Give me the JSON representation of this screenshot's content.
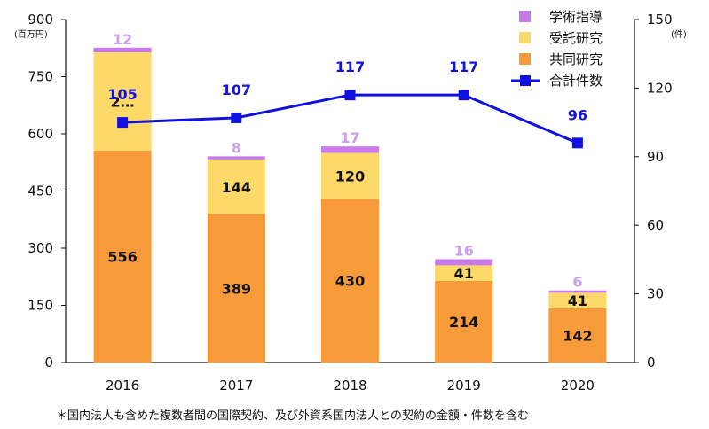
{
  "chart_data": {
    "type": "bar",
    "stacked": true,
    "categories": [
      "2016",
      "2017",
      "2018",
      "2019",
      "2020"
    ],
    "series": [
      {
        "name": "共同研究",
        "color": "#f79a3a",
        "values": [
          556,
          389,
          430,
          214,
          142
        ],
        "labels": [
          "556",
          "389",
          "430",
          "214",
          "142"
        ]
      },
      {
        "name": "受託研究",
        "color": "#fdd96a",
        "values": [
          258,
          144,
          120,
          41,
          41
        ],
        "labels": [
          "2…",
          "144",
          "120",
          "41",
          "41"
        ]
      },
      {
        "name": "学術指導",
        "color": "#c879ea",
        "values": [
          12,
          8,
          17,
          16,
          6
        ],
        "labels": [
          "12",
          "8",
          "17",
          "16",
          "6"
        ]
      }
    ],
    "line_series": {
      "name": "合計件数",
      "color": "#1010e0",
      "values": [
        105,
        107,
        117,
        117,
        96
      ],
      "labels": [
        "105",
        "107",
        "117",
        "117",
        "96"
      ]
    },
    "y_left": {
      "min": 0,
      "max": 900,
      "ticks": [
        "0",
        "150",
        "300",
        "450",
        "600",
        "750",
        "900"
      ],
      "unit": "(百万円)"
    },
    "y_right": {
      "min": 0,
      "max": 150,
      "ticks": [
        "0",
        "30",
        "60",
        "90",
        "120",
        "150"
      ],
      "unit": "(件)"
    },
    "legend_position": "top-right",
    "grid": false,
    "footnote": "＊国内法人も含めた複数者間の国際契約、及び外資系国内法人との契約の金額・件数を含む"
  }
}
